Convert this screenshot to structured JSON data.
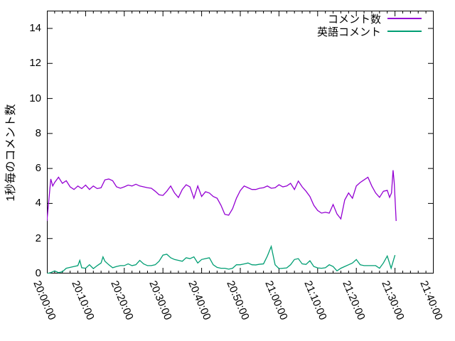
{
  "figure": {
    "background": "#ffffff",
    "border_color": "#000000"
  },
  "legend": {
    "items": [
      {
        "label": "コメント数",
        "color": "#9400d3"
      },
      {
        "label": "英語コメント",
        "color": "#009e73"
      }
    ]
  },
  "chart_data": {
    "type": "line",
    "title": "",
    "xlabel": "",
    "ylabel": "1秒毎のコメント数",
    "grid": false,
    "legend_position": "top-right-inside",
    "x_axis": {
      "tick_labels": [
        "20:00:00",
        "20:10:00",
        "20:20:00",
        "20:30:00",
        "20:40:00",
        "20:50:00",
        "21:00:00",
        "21:10:00",
        "21:20:00",
        "21:30:00",
        "21:40:00"
      ],
      "range": [
        "20:00:00",
        "21:40:00"
      ],
      "major_tick_interval_minutes": 10,
      "minor_tick_interval_minutes": 2,
      "tick_label_rotation_deg": 67
    },
    "y_axis": {
      "ticks": [
        0,
        2,
        4,
        6,
        8,
        10,
        12,
        14
      ],
      "range": [
        0,
        15
      ]
    },
    "series": [
      {
        "name": "コメント数",
        "color": "#9400d3",
        "x_unit": "minutes after 20:00:00",
        "points": [
          [
            0,
            3.0
          ],
          [
            1,
            5.4
          ],
          [
            1.5,
            5.0
          ],
          [
            2,
            5.2
          ],
          [
            3,
            5.5
          ],
          [
            4,
            5.15
          ],
          [
            5,
            5.3
          ],
          [
            6,
            4.95
          ],
          [
            7,
            4.8
          ],
          [
            8,
            5.0
          ],
          [
            9,
            4.85
          ],
          [
            10,
            5.05
          ],
          [
            11,
            4.8
          ],
          [
            12,
            5.0
          ],
          [
            13,
            4.85
          ],
          [
            14,
            4.9
          ],
          [
            15,
            5.35
          ],
          [
            16,
            5.4
          ],
          [
            17,
            5.3
          ],
          [
            18,
            4.95
          ],
          [
            19,
            4.87
          ],
          [
            20,
            4.95
          ],
          [
            21,
            5.05
          ],
          [
            22,
            5.0
          ],
          [
            23,
            5.1
          ],
          [
            24,
            5.0
          ],
          [
            25,
            4.95
          ],
          [
            26,
            4.9
          ],
          [
            27,
            4.87
          ],
          [
            28,
            4.7
          ],
          [
            29,
            4.5
          ],
          [
            30,
            4.46
          ],
          [
            31,
            4.7
          ],
          [
            32,
            5.0
          ],
          [
            33,
            4.6
          ],
          [
            34,
            4.34
          ],
          [
            35,
            4.8
          ],
          [
            36,
            5.07
          ],
          [
            37,
            4.95
          ],
          [
            38,
            4.3
          ],
          [
            39,
            5.0
          ],
          [
            40,
            4.4
          ],
          [
            41,
            4.67
          ],
          [
            42,
            4.6
          ],
          [
            43,
            4.4
          ],
          [
            44,
            4.3
          ],
          [
            45,
            3.9
          ],
          [
            46,
            3.38
          ],
          [
            47,
            3.33
          ],
          [
            48,
            3.7
          ],
          [
            49,
            4.3
          ],
          [
            50,
            4.74
          ],
          [
            51,
            5.0
          ],
          [
            52,
            4.9
          ],
          [
            53,
            4.8
          ],
          [
            54,
            4.8
          ],
          [
            55,
            4.87
          ],
          [
            56,
            4.9
          ],
          [
            57,
            5.0
          ],
          [
            58,
            4.87
          ],
          [
            59,
            4.9
          ],
          [
            60,
            5.07
          ],
          [
            61,
            4.95
          ],
          [
            62,
            5.0
          ],
          [
            63,
            5.15
          ],
          [
            64,
            4.8
          ],
          [
            65,
            5.28
          ],
          [
            66,
            4.95
          ],
          [
            67,
            4.7
          ],
          [
            68,
            4.4
          ],
          [
            69,
            3.9
          ],
          [
            70,
            3.6
          ],
          [
            71,
            3.45
          ],
          [
            72,
            3.5
          ],
          [
            73,
            3.45
          ],
          [
            74,
            3.94
          ],
          [
            75,
            3.4
          ],
          [
            76,
            3.12
          ],
          [
            77,
            4.2
          ],
          [
            78,
            4.6
          ],
          [
            79,
            4.3
          ],
          [
            80,
            5.0
          ],
          [
            81,
            5.2
          ],
          [
            82,
            5.35
          ],
          [
            83,
            5.5
          ],
          [
            84,
            5.0
          ],
          [
            85,
            4.6
          ],
          [
            86,
            4.35
          ],
          [
            87,
            4.7
          ],
          [
            88,
            4.75
          ],
          [
            88.6,
            4.35
          ],
          [
            89.1,
            4.6
          ],
          [
            89.5,
            5.9
          ],
          [
            89.8,
            5.2
          ],
          [
            90.3,
            3.0
          ]
        ]
      },
      {
        "name": "英語コメント",
        "color": "#009e73",
        "x_unit": "minutes after 20:00:00",
        "points": [
          [
            0,
            0.0
          ],
          [
            1,
            0.05
          ],
          [
            2,
            0.15
          ],
          [
            3,
            0.05
          ],
          [
            4,
            0.1
          ],
          [
            5,
            0.3
          ],
          [
            6,
            0.35
          ],
          [
            7,
            0.4
          ],
          [
            8,
            0.45
          ],
          [
            8.5,
            0.75
          ],
          [
            9,
            0.33
          ],
          [
            10,
            0.3
          ],
          [
            11,
            0.5
          ],
          [
            12,
            0.28
          ],
          [
            13,
            0.45
          ],
          [
            14,
            0.6
          ],
          [
            14.5,
            0.95
          ],
          [
            15,
            0.7
          ],
          [
            16,
            0.5
          ],
          [
            17,
            0.33
          ],
          [
            18,
            0.4
          ],
          [
            19,
            0.45
          ],
          [
            20,
            0.45
          ],
          [
            21,
            0.55
          ],
          [
            22,
            0.45
          ],
          [
            23,
            0.5
          ],
          [
            24,
            0.75
          ],
          [
            25,
            0.55
          ],
          [
            26,
            0.45
          ],
          [
            27,
            0.45
          ],
          [
            28,
            0.5
          ],
          [
            29,
            0.7
          ],
          [
            30,
            1.05
          ],
          [
            31,
            1.1
          ],
          [
            32,
            0.9
          ],
          [
            33,
            0.8
          ],
          [
            34,
            0.75
          ],
          [
            35,
            0.7
          ],
          [
            36,
            0.9
          ],
          [
            37,
            0.85
          ],
          [
            38,
            0.95
          ],
          [
            39,
            0.6
          ],
          [
            40,
            0.8
          ],
          [
            41,
            0.85
          ],
          [
            42,
            0.9
          ],
          [
            43,
            0.5
          ],
          [
            44,
            0.35
          ],
          [
            45,
            0.3
          ],
          [
            46,
            0.3
          ],
          [
            47,
            0.25
          ],
          [
            48,
            0.3
          ],
          [
            49,
            0.5
          ],
          [
            50,
            0.5
          ],
          [
            51,
            0.55
          ],
          [
            52,
            0.6
          ],
          [
            53,
            0.5
          ],
          [
            54,
            0.49
          ],
          [
            55,
            0.53
          ],
          [
            56,
            0.55
          ],
          [
            57,
            1.0
          ],
          [
            58,
            1.55
          ],
          [
            59,
            0.5
          ],
          [
            60,
            0.28
          ],
          [
            61,
            0.3
          ],
          [
            62,
            0.32
          ],
          [
            63,
            0.5
          ],
          [
            64,
            0.8
          ],
          [
            65,
            0.85
          ],
          [
            66,
            0.55
          ],
          [
            67,
            0.52
          ],
          [
            68,
            0.73
          ],
          [
            69,
            0.4
          ],
          [
            70,
            0.32
          ],
          [
            71,
            0.3
          ],
          [
            72,
            0.33
          ],
          [
            73,
            0.5
          ],
          [
            74,
            0.4
          ],
          [
            75,
            0.15
          ],
          [
            76,
            0.3
          ],
          [
            77,
            0.4
          ],
          [
            78,
            0.5
          ],
          [
            79,
            0.6
          ],
          [
            80,
            0.8
          ],
          [
            81,
            0.5
          ],
          [
            82,
            0.45
          ],
          [
            83,
            0.45
          ],
          [
            84,
            0.45
          ],
          [
            85,
            0.45
          ],
          [
            86,
            0.3
          ],
          [
            87,
            0.6
          ],
          [
            88,
            1.0
          ],
          [
            89,
            0.3
          ],
          [
            90,
            1.05
          ]
        ]
      }
    ]
  }
}
